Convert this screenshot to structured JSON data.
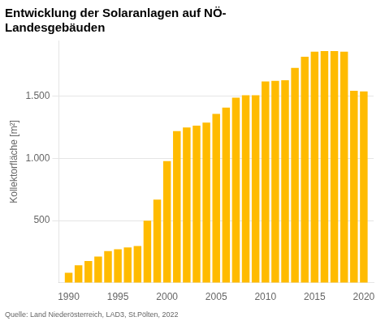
{
  "chart_data": {
    "type": "bar",
    "title": "Entwicklung der Solaranlagen auf NÖ-\nLandesgebäuden",
    "ylabel": "Kollektorfläche [m²]",
    "source": "Quelle: Land Niederösterreich, LAD3, St.Pölten, 2022",
    "color": "#FFBB00",
    "x": [
      1990,
      1991,
      1992,
      1993,
      1994,
      1995,
      1996,
      1997,
      1998,
      1999,
      2000,
      2001,
      2002,
      2003,
      2004,
      2005,
      2006,
      2007,
      2008,
      2009,
      2010,
      2011,
      2012,
      2013,
      2014,
      2015,
      2016,
      2017,
      2018,
      2019,
      2020
    ],
    "values": [
      80,
      140,
      175,
      210,
      255,
      270,
      285,
      295,
      500,
      670,
      980,
      1220,
      1250,
      1265,
      1290,
      1360,
      1410,
      1490,
      1510,
      1510,
      1620,
      1625,
      1630,
      1730,
      1820,
      1860,
      1865,
      1865,
      1860,
      1545,
      1540
    ],
    "xlim": [
      1989,
      2021
    ],
    "xticks": [
      1990,
      1995,
      2000,
      2005,
      2010,
      2015,
      2020
    ],
    "ylim": [
      0,
      1950
    ],
    "yticks": [
      500,
      {
        "value": 1000,
        "label": "1.000"
      },
      {
        "value": 1500,
        "label": "1.500"
      }
    ],
    "grid": true
  }
}
